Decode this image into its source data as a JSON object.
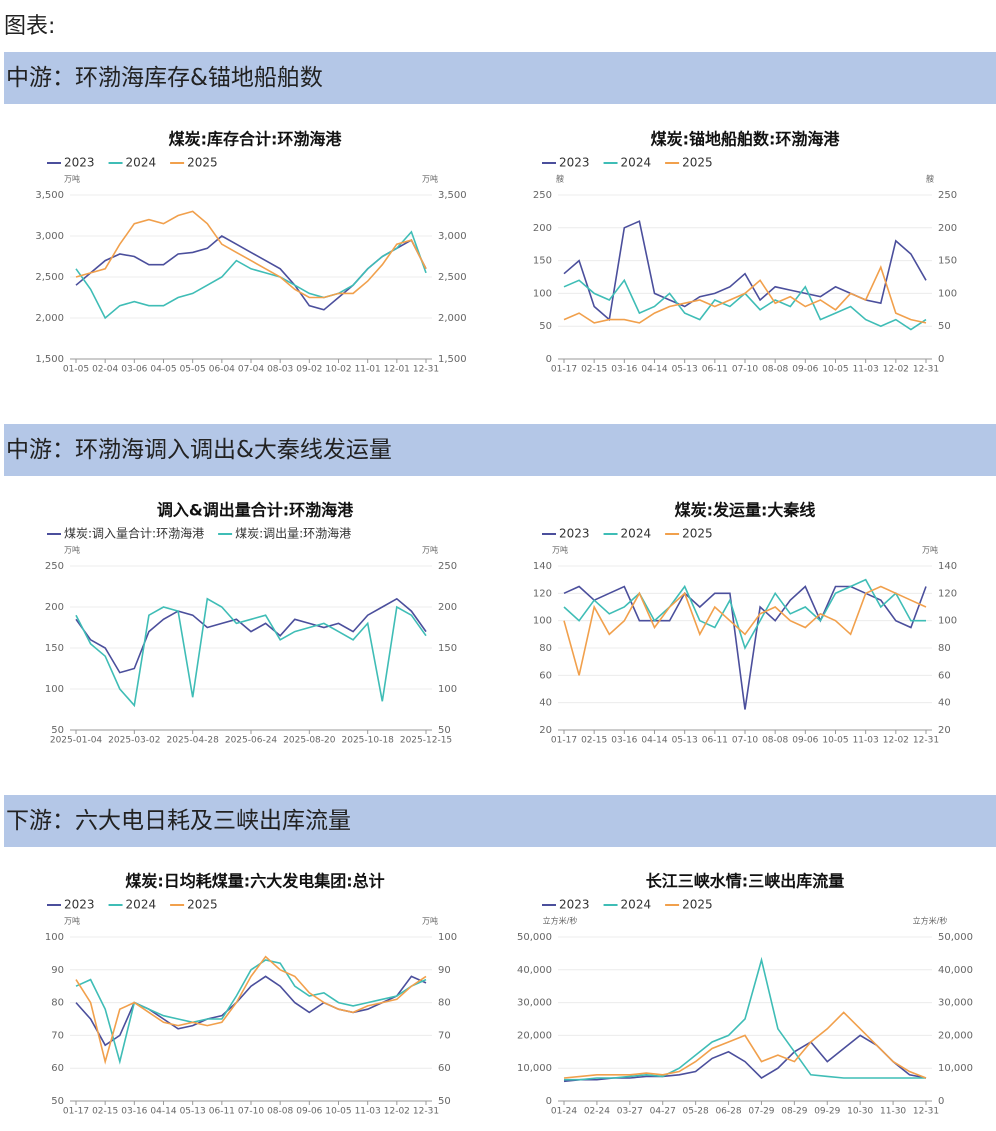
{
  "page_title": "图表:",
  "sections": [
    "中游：环渤海库存&锚地船舶数",
    "中游：环渤海调入调出&大秦线发运量",
    "下游：六大电日耗及三峡出库流量"
  ],
  "chart_data": [
    {
      "type": "line",
      "title": "煤炭:库存合计:环渤海港",
      "y_unit": "万吨",
      "categories": [
        "01-05",
        null,
        "02-04",
        null,
        "03-06",
        null,
        "04-05",
        null,
        "05-05",
        null,
        "06-04",
        null,
        "07-04",
        null,
        "08-03",
        null,
        "09-02",
        null,
        "10-02",
        null,
        "11-01",
        null,
        "12-01",
        null,
        "12-31"
      ],
      "ylim": [
        1500,
        3500
      ],
      "yticks": [
        {
          "value": 1500,
          "label": "1,500"
        },
        {
          "value": 2000,
          "label": "2,000"
        },
        {
          "value": 2500,
          "label": "2,500"
        },
        {
          "value": 3000,
          "label": "3,000"
        },
        {
          "value": 3500,
          "label": "3,500"
        }
      ],
      "grid": true,
      "series": [
        {
          "name": "2023",
          "color": "#4b4f9c",
          "values": [
            2400,
            2550,
            2700,
            2780,
            2750,
            2650,
            2650,
            2780,
            2800,
            2850,
            3000,
            2900,
            2800,
            2700,
            2600,
            2400,
            2150,
            2100,
            2250,
            2400,
            2600,
            2750,
            2850,
            2950,
            2600
          ]
        },
        {
          "name": "2024",
          "color": "#3fbdb6",
          "values": [
            2600,
            2350,
            2000,
            2150,
            2200,
            2150,
            2150,
            2250,
            2300,
            2400,
            2500,
            2700,
            2600,
            2550,
            2500,
            2400,
            2300,
            2250,
            2300,
            2400,
            2600,
            2750,
            2850,
            3050,
            2550
          ]
        },
        {
          "name": "2025",
          "color": "#f1a04c",
          "values": [
            2500,
            2550,
            2600,
            2900,
            3150,
            3200,
            3150,
            3250,
            3300,
            3150,
            2900,
            2800,
            2700,
            2600,
            2500,
            2350,
            2250,
            2250,
            2300,
            2300,
            2450,
            2650,
            2900,
            2950,
            2600
          ]
        }
      ]
    },
    {
      "type": "line",
      "title": "煤炭:锚地船舶数:环渤海港",
      "y_unit": "艘",
      "categories": [
        "01-17",
        null,
        "02-15",
        null,
        "03-16",
        null,
        "04-14",
        null,
        "05-13",
        null,
        "06-11",
        null,
        "07-10",
        null,
        "08-08",
        null,
        "09-06",
        null,
        "10-05",
        null,
        "11-03",
        null,
        "12-02",
        null,
        "12-31"
      ],
      "ylim": [
        0,
        250
      ],
      "yticks": [
        0,
        50,
        100,
        150,
        200,
        250
      ],
      "grid": true,
      "series": [
        {
          "name": "2023",
          "color": "#4b4f9c",
          "values": [
            130,
            150,
            80,
            60,
            200,
            210,
            100,
            90,
            80,
            95,
            100,
            110,
            130,
            90,
            110,
            105,
            100,
            95,
            110,
            100,
            90,
            85,
            180,
            160,
            120
          ]
        },
        {
          "name": "2024",
          "color": "#3fbdb6",
          "values": [
            110,
            120,
            100,
            90,
            120,
            70,
            80,
            100,
            70,
            60,
            90,
            80,
            100,
            75,
            90,
            80,
            110,
            60,
            70,
            80,
            60,
            50,
            60,
            45,
            60
          ]
        },
        {
          "name": "2025",
          "color": "#f1a04c",
          "values": [
            60,
            70,
            55,
            60,
            60,
            55,
            70,
            80,
            85,
            90,
            80,
            90,
            100,
            120,
            85,
            95,
            80,
            90,
            75,
            100,
            90,
            140,
            70,
            60,
            55
          ]
        }
      ]
    },
    {
      "type": "line",
      "title": "调入&调出量合计:环渤海港",
      "y_unit": "万吨",
      "categories": [
        "2025-01-04",
        null,
        null,
        null,
        "2025-03-02",
        null,
        null,
        null,
        "2025-04-28",
        null,
        null,
        null,
        "2025-06-24",
        null,
        null,
        null,
        "2025-08-20",
        null,
        null,
        null,
        "2025-10-18",
        null,
        null,
        null,
        "2025-12-15"
      ],
      "ylim": [
        50,
        250
      ],
      "yticks": [
        50,
        100,
        150,
        200,
        250
      ],
      "grid": true,
      "series": [
        {
          "name": "煤炭:调入量合计:环渤海港",
          "color": "#4b4f9c",
          "values": [
            185,
            160,
            150,
            120,
            125,
            170,
            185,
            195,
            190,
            175,
            180,
            185,
            170,
            180,
            165,
            185,
            180,
            175,
            180,
            170,
            190,
            200,
            210,
            195,
            170
          ]
        },
        {
          "name": "煤炭:调出量:环渤海港",
          "color": "#3fbdb6",
          "values": [
            190,
            155,
            140,
            100,
            80,
            190,
            200,
            195,
            90,
            210,
            200,
            180,
            185,
            190,
            160,
            170,
            175,
            180,
            170,
            160,
            180,
            85,
            200,
            190,
            165
          ]
        }
      ]
    },
    {
      "type": "line",
      "title": "煤炭:发运量:大秦线",
      "y_unit": "万吨",
      "categories": [
        "01-17",
        null,
        "02-15",
        null,
        "03-16",
        null,
        "04-14",
        null,
        "05-13",
        null,
        "06-11",
        null,
        "07-10",
        null,
        "08-08",
        null,
        "09-06",
        null,
        "10-05",
        null,
        "11-03",
        null,
        "12-02",
        null,
        "12-31"
      ],
      "ylim": [
        20,
        140
      ],
      "yticks": [
        20,
        40,
        60,
        80,
        100,
        120,
        140
      ],
      "grid": true,
      "series": [
        {
          "name": "2023",
          "color": "#4b4f9c",
          "values": [
            120,
            125,
            115,
            120,
            125,
            100,
            100,
            100,
            120,
            110,
            120,
            120,
            35,
            110,
            100,
            115,
            125,
            100,
            125,
            125,
            120,
            115,
            100,
            95,
            125
          ]
        },
        {
          "name": "2024",
          "color": "#3fbdb6",
          "values": [
            110,
            100,
            115,
            105,
            110,
            120,
            100,
            110,
            125,
            100,
            95,
            115,
            80,
            100,
            120,
            105,
            110,
            100,
            120,
            125,
            130,
            110,
            120,
            100,
            100
          ]
        },
        {
          "name": "2025",
          "color": "#f1a04c",
          "values": [
            100,
            60,
            110,
            90,
            100,
            120,
            95,
            110,
            120,
            90,
            110,
            100,
            90,
            105,
            110,
            100,
            95,
            105,
            100,
            90,
            120,
            125,
            120,
            115,
            110
          ]
        }
      ]
    },
    {
      "type": "line",
      "title": "煤炭:日均耗煤量:六大发电集团:总计",
      "y_unit": "万吨",
      "categories": [
        "01-17",
        null,
        "02-15",
        null,
        "03-16",
        null,
        "04-14",
        null,
        "05-13",
        null,
        "06-11",
        null,
        "07-10",
        null,
        "08-08",
        null,
        "09-06",
        null,
        "10-05",
        null,
        "11-03",
        null,
        "12-02",
        null,
        "12-31"
      ],
      "ylim": [
        50,
        100
      ],
      "yticks": [
        50,
        60,
        70,
        80,
        90,
        100
      ],
      "grid": true,
      "series": [
        {
          "name": "2023",
          "color": "#4b4f9c",
          "values": [
            80,
            75,
            67,
            70,
            80,
            78,
            75,
            72,
            73,
            75,
            76,
            80,
            85,
            88,
            85,
            80,
            77,
            80,
            78,
            77,
            78,
            80,
            82,
            88,
            86
          ]
        },
        {
          "name": "2024",
          "color": "#3fbdb6",
          "values": [
            85,
            87,
            78,
            62,
            80,
            78,
            76,
            75,
            74,
            75,
            75,
            82,
            90,
            93,
            92,
            85,
            82,
            83,
            80,
            79,
            80,
            81,
            82,
            85,
            87
          ]
        },
        {
          "name": "2025",
          "color": "#f1a04c",
          "values": [
            87,
            80,
            62,
            78,
            80,
            77,
            74,
            73,
            74,
            73,
            74,
            80,
            88,
            94,
            90,
            88,
            83,
            80,
            78,
            77,
            79,
            80,
            81,
            85,
            88
          ]
        }
      ]
    },
    {
      "type": "line",
      "title": "长江三峡水情:三峡出库流量",
      "y_unit": "立方米/秒",
      "categories": [
        "01-24",
        null,
        "02-24",
        null,
        "03-27",
        null,
        "04-27",
        null,
        "05-28",
        null,
        "06-28",
        null,
        "07-29",
        null,
        "08-29",
        null,
        "09-29",
        null,
        "10-30",
        null,
        "11-30",
        null,
        "12-31"
      ],
      "ylim": [
        0,
        50000
      ],
      "yticks": [
        0,
        {
          "value": 10000,
          "label": "10,000"
        },
        {
          "value": 20000,
          "label": "20,000"
        },
        {
          "value": 30000,
          "label": "30,000"
        },
        {
          "value": 40000,
          "label": "40,000"
        },
        {
          "value": 50000,
          "label": "50,000"
        }
      ],
      "grid": true,
      "series": [
        {
          "name": "2023",
          "color": "#4b4f9c",
          "values": [
            6000,
            6500,
            6500,
            7000,
            7000,
            7500,
            7500,
            8000,
            9000,
            13000,
            15000,
            12000,
            7000,
            10000,
            15000,
            18000,
            12000,
            16000,
            20000,
            17000,
            12000,
            8000,
            7000
          ]
        },
        {
          "name": "2024",
          "color": "#3fbdb6",
          "values": [
            6500,
            6500,
            7000,
            7000,
            7500,
            8000,
            7500,
            10000,
            14000,
            18000,
            20000,
            25000,
            43000,
            22000,
            15000,
            8000,
            7500,
            7000,
            7000,
            7000,
            7000,
            7000,
            7000
          ]
        },
        {
          "name": "2025",
          "color": "#f1a04c",
          "values": [
            7000,
            7500,
            8000,
            8000,
            8000,
            8500,
            8000,
            9000,
            12000,
            16000,
            18000,
            20000,
            12000,
            14000,
            12000,
            18000,
            22000,
            27000,
            22000,
            17000,
            12000,
            9000,
            7000
          ]
        }
      ]
    }
  ]
}
